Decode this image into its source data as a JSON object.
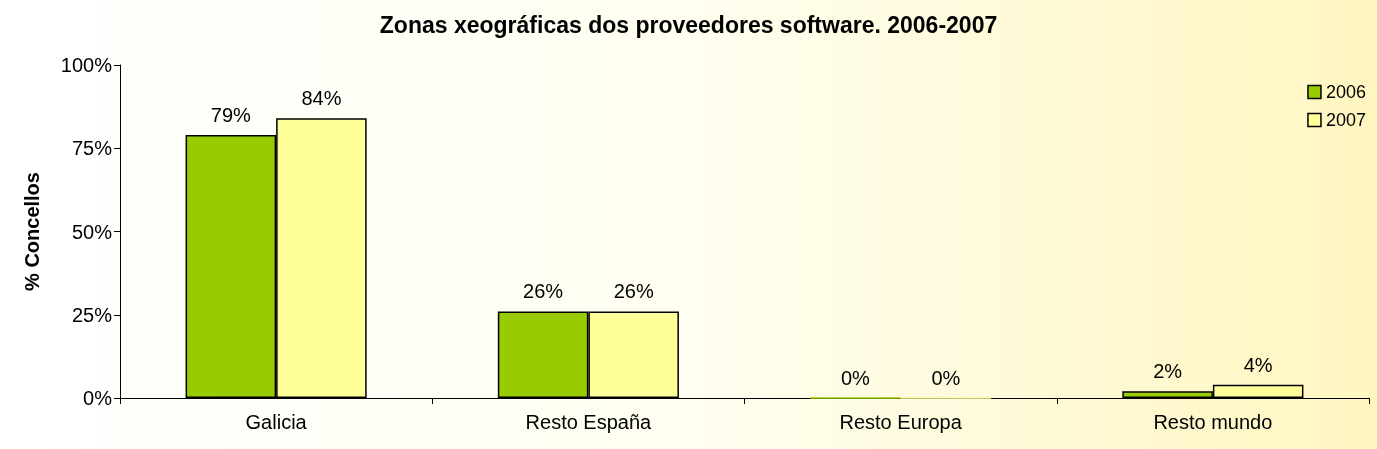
{
  "chart_data": {
    "type": "bar",
    "title": "Zonas xeográficas dos proveedores software. 2006-2007",
    "ylabel": "% Concellos",
    "categories": [
      "Galicia",
      "Resto España",
      "Resto Europa",
      "Resto mundo"
    ],
    "series": [
      {
        "name": "2006",
        "color": "#99cc00",
        "values": [
          79,
          26,
          0,
          2
        ],
        "value_labels": [
          "79%",
          "26%",
          "0%",
          "2%"
        ]
      },
      {
        "name": "2007",
        "color": "#ffff99",
        "values": [
          84,
          26,
          0,
          4
        ],
        "value_labels": [
          "84%",
          "26%",
          "0%",
          "4%"
        ]
      }
    ],
    "ylim": [
      0,
      100
    ],
    "yticks": [
      {
        "value": 0,
        "label": "0%"
      },
      {
        "value": 25,
        "label": "25%"
      },
      {
        "value": 50,
        "label": "50%"
      },
      {
        "value": 75,
        "label": "75%"
      },
      {
        "value": 100,
        "label": "100%"
      }
    ],
    "grid": false,
    "legend": "top right"
  }
}
